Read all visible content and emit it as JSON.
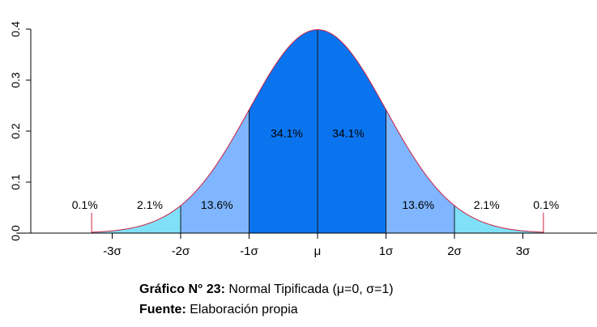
{
  "chart_data": {
    "type": "area",
    "distribution": "standard normal",
    "ylim": [
      0,
      0.4
    ],
    "yticks": [
      "0.0",
      "0.1",
      "0.2",
      "0.3",
      "0.4"
    ],
    "xlim": [
      -4.4,
      4.2
    ],
    "xticks": [
      {
        "value": -3,
        "label": "-3σ"
      },
      {
        "value": -2,
        "label": "-2σ"
      },
      {
        "value": -1,
        "label": "-1σ"
      },
      {
        "value": 0,
        "label": "μ"
      },
      {
        "value": 1,
        "label": "1σ"
      },
      {
        "value": 2,
        "label": "2σ"
      },
      {
        "value": 3,
        "label": "3σ"
      }
    ],
    "regions": [
      {
        "from": -3.3,
        "to": -3,
        "percent": "0.1%",
        "color": "#7fe0f8"
      },
      {
        "from": -3,
        "to": -2,
        "percent": "2.1%",
        "color": "#7fe0f8"
      },
      {
        "from": -2,
        "to": -1,
        "percent": "13.6%",
        "color": "#7fb6ff"
      },
      {
        "from": -1,
        "to": 0,
        "percent": "34.1%",
        "color": "#0a74ee"
      },
      {
        "from": 0,
        "to": 1,
        "percent": "34.1%",
        "color": "#0a74ee"
      },
      {
        "from": 1,
        "to": 2,
        "percent": "13.6%",
        "color": "#7fb6ff"
      },
      {
        "from": 2,
        "to": 3,
        "percent": "2.1%",
        "color": "#7fe0f8"
      },
      {
        "from": 3,
        "to": 3.3,
        "percent": "0.1%",
        "color": "#7fe0f8"
      }
    ],
    "curve_color": "#cc2244",
    "grid": false
  },
  "caption": {
    "line1_bold": "Gráfico N° 23:",
    "line1_text": " Normal Tipificada (μ=0, σ=1)",
    "line2_bold": "Fuente:",
    "line2_text": " Elaboración propia"
  }
}
